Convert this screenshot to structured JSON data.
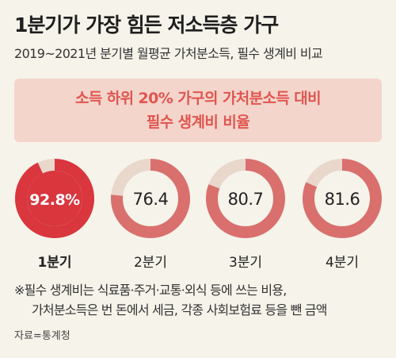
{
  "title": "1분기가 가장 힘든 저소득층 가구",
  "subtitle": "2019~2021년 분기별 월평균 가처분소득, 필수 생계비 비교",
  "banner": {
    "line1": "소득 하위 20% 가구의 가처분소득 대비",
    "line2": "필수 생계비 비율"
  },
  "note": {
    "line1": "※필수 생계비는 식료품·주거·교통·외식 등에 쓰는 비용,",
    "line2": "가처분소득은 번 돈에서 세금, 각종 사회보험료 등을 뺀 금액"
  },
  "source": "자료=통계청",
  "colors": {
    "highlight": "#d9363e",
    "ring": "#d9706d",
    "track": "#ead7cc",
    "highlight_text": "#ffffff"
  },
  "chart_data": {
    "type": "pie",
    "title": "소득 하위 20% 가구의 가처분소득 대비 필수 생계비 비율",
    "unit": "%",
    "max": 100,
    "categories": [
      "1분기",
      "2분기",
      "3분기",
      "4분기"
    ],
    "values": [
      92.8,
      76.4,
      80.7,
      81.6
    ],
    "labels": [
      "92.8%",
      "76.4",
      "80.7",
      "81.6"
    ],
    "highlight_index": 0
  }
}
